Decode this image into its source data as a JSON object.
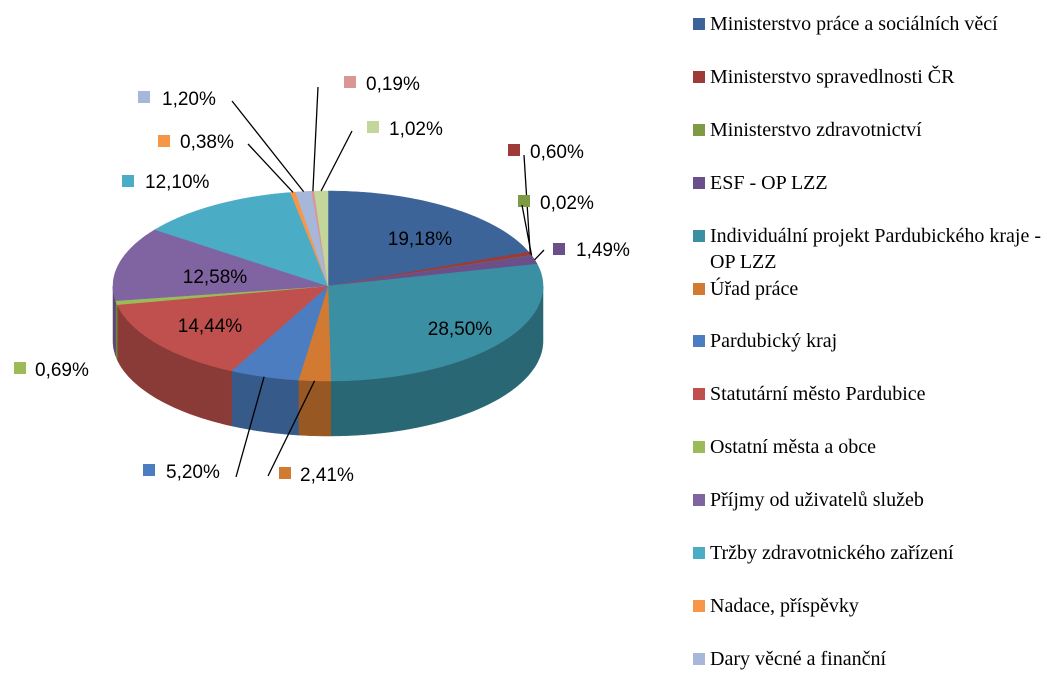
{
  "chart_data": {
    "type": "pie3d",
    "categories": [
      "Ministerstvo práce a sociálních věcí",
      "Ministerstvo spravedlnosti ČR",
      "Ministerstvo zdravotnictví",
      "ESF - OP LZZ",
      "Individuální projekt Pardubického kraje - OP LZZ",
      "Úřad práce",
      "Pardubický kraj",
      "Statutární město Pardubice",
      "Ostatní města a obce",
      "Příjmy od uživatelů služeb",
      "Tržby zdravotnického zařízení",
      "Nadace, příspěvky",
      "Dary věcné a finanční",
      null,
      null
    ],
    "values": [
      19.18,
      0.6,
      0.02,
      1.49,
      28.5,
      2.41,
      5.2,
      14.44,
      0.69,
      12.58,
      12.1,
      0.38,
      1.2,
      0.19,
      1.02
    ],
    "value_labels": [
      "19,18%",
      "0,60%",
      "0,02%",
      "1,49%",
      "28,50%",
      "2,41%",
      "5,20%",
      "14,44%",
      "0,69%",
      "12,58%",
      "12,10%",
      "0,38%",
      "1,20%",
      "0,19%",
      "1,02%"
    ],
    "colors": [
      "#3c6499",
      "#9d3b38",
      "#7e9a44",
      "#6a4f8a",
      "#3a8fa3",
      "#d27a32",
      "#4b7dc0",
      "#c0504d",
      "#9bbb59",
      "#8064a2",
      "#4bacc6",
      "#f79646",
      "#a6b7d9",
      "#d99694",
      "#c3d69b"
    ],
    "legend": "right"
  }
}
